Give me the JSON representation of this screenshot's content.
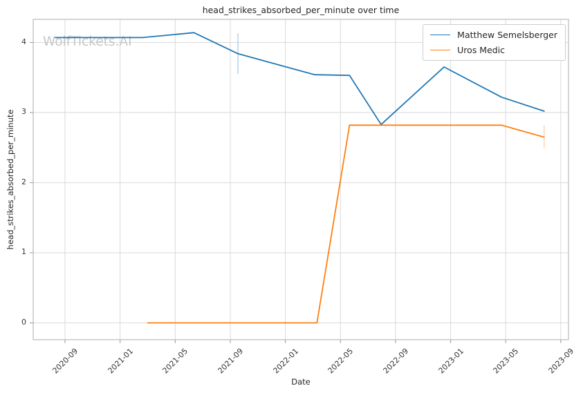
{
  "watermark": {
    "text": "WolfTickets.AI",
    "color": "#c6c6c6"
  },
  "theme": {
    "background": "#ffffff",
    "grid_color": "#d9d9d9",
    "spine_color": "#ababab",
    "tick_color": "#999999",
    "text_color": "#262626"
  },
  "chart_data": {
    "type": "line",
    "title": "head_strikes_absorbed_per_minute over time",
    "xlabel": "Date",
    "ylabel": "head_strikes_absorbed_per_minute",
    "x_tick_labels": [
      "2020-09",
      "2021-01",
      "2021-05",
      "2021-09",
      "2022-01",
      "2022-05",
      "2022-09",
      "2023-01",
      "2023-05",
      "2023-09"
    ],
    "y_ticks": [
      0,
      1,
      2,
      3,
      4
    ],
    "ylim": [
      -0.24,
      4.33
    ],
    "xlim": [
      "2020-06-22",
      "2023-09-18"
    ],
    "grid": true,
    "legend_position": "upper right",
    "series": [
      {
        "name": "Matthew Semelsberger",
        "color": "#1f77b4",
        "points": [
          {
            "date": "2020-08-10",
            "value": 4.07
          },
          {
            "date": "2021-02-20",
            "value": 4.07
          },
          {
            "date": "2021-06-12",
            "value": 4.14
          },
          {
            "date": "2021-09-18",
            "value": 3.84
          },
          {
            "date": "2022-03-05",
            "value": 3.54
          },
          {
            "date": "2022-05-21",
            "value": 3.53
          },
          {
            "date": "2022-07-30",
            "value": 2.83
          },
          {
            "date": "2022-12-17",
            "value": 3.65
          },
          {
            "date": "2023-04-22",
            "value": 3.22
          },
          {
            "date": "2023-07-25",
            "value": 3.02
          }
        ],
        "error_bar": {
          "date": "2021-09-18",
          "low": 3.55,
          "high": 4.13,
          "color": "#b8d4e9"
        }
      },
      {
        "name": "Uros Medic",
        "color": "#ff7f0e",
        "points": [
          {
            "date": "2021-03-01",
            "value": 0.0
          },
          {
            "date": "2022-03-10",
            "value": 0.0
          },
          {
            "date": "2022-05-21",
            "value": 2.82
          },
          {
            "date": "2023-04-22",
            "value": 2.82
          },
          {
            "date": "2023-07-25",
            "value": 2.65
          }
        ],
        "error_bar": {
          "date": "2023-07-25",
          "low": 2.49,
          "high": 2.82,
          "color": "#ffd9b5"
        }
      }
    ]
  }
}
